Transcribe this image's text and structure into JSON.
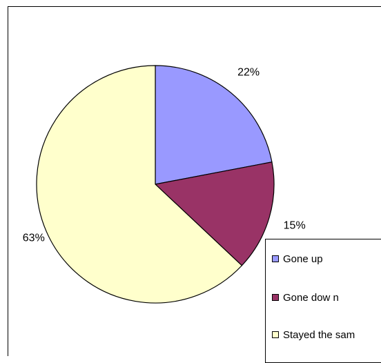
{
  "chart_data": {
    "type": "pie",
    "title": "",
    "categories": [
      "Gone up",
      "Gone dow n",
      "Stayed the sam"
    ],
    "values": [
      22,
      15,
      63
    ],
    "labels": [
      "22%",
      "15%",
      "63%"
    ],
    "colors": [
      "#9999FF",
      "#993366",
      "#FFFFCC"
    ],
    "legend_position": "bottom-right",
    "start_angle": "12 o'clock, clockwise"
  },
  "legend": {
    "items": [
      {
        "label": "Gone up",
        "color": "#9999FF"
      },
      {
        "label": "Gone dow n",
        "color": "#993366"
      },
      {
        "label": "Stayed the sam",
        "color": "#FFFFCC"
      }
    ]
  }
}
